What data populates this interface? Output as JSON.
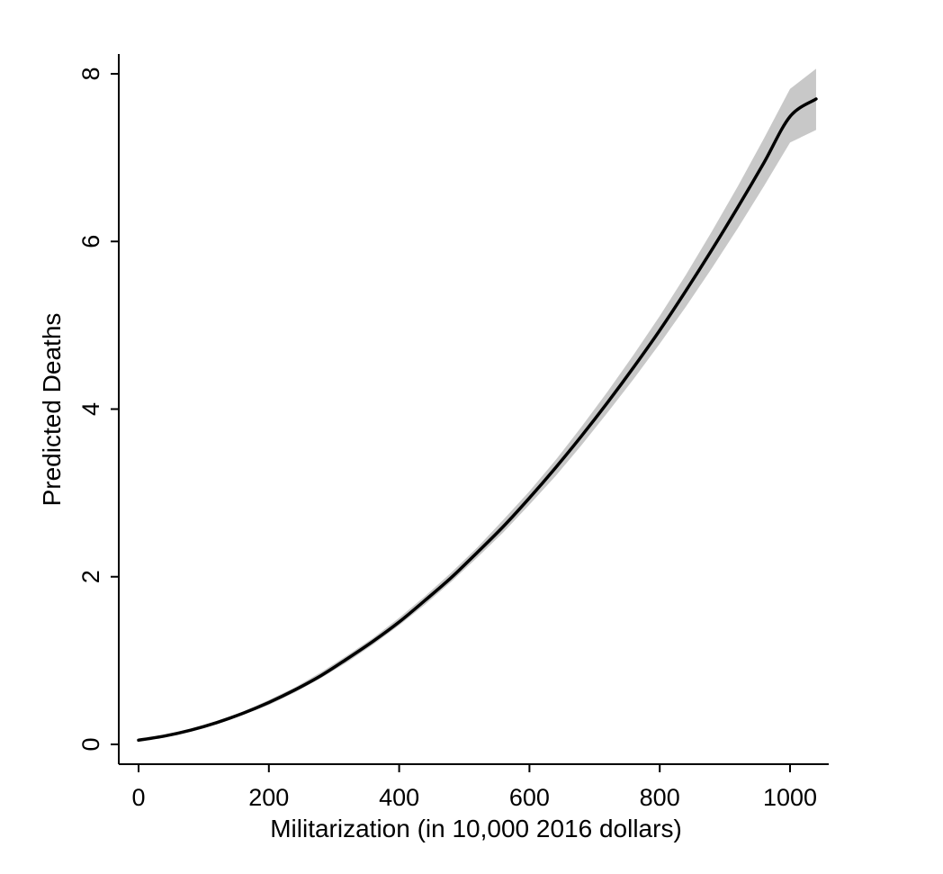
{
  "chart_data": {
    "type": "line",
    "title": "",
    "xlabel": "Militarization (in 10,000 2016 dollars)",
    "ylabel": "Predicted Deaths",
    "xlim": [
      0,
      1040
    ],
    "ylim": [
      0,
      8
    ],
    "x_ticks": [
      0,
      200,
      400,
      600,
      800,
      1000
    ],
    "y_ticks": [
      0,
      2,
      4,
      6,
      8
    ],
    "x_tick_labels": [
      "0",
      "200",
      "400",
      "600",
      "800",
      "1000"
    ],
    "y_tick_labels": [
      "0",
      "2",
      "4",
      "6",
      "8"
    ],
    "grid": false,
    "legend": "none",
    "colors": {
      "line": "#000000",
      "band": "#c8c8c8",
      "axis": "#000000"
    },
    "series": [
      {
        "values_x": [
          0,
          40,
          80,
          120,
          160,
          200,
          240,
          280,
          320,
          360,
          400,
          440,
          480,
          520,
          560,
          600,
          640,
          680,
          720,
          760,
          800,
          840,
          880,
          920,
          960,
          1000,
          1040
        ],
        "values_y": [
          0.05,
          0.1,
          0.17,
          0.26,
          0.37,
          0.5,
          0.65,
          0.82,
          1.02,
          1.23,
          1.46,
          1.72,
          1.99,
          2.29,
          2.6,
          2.94,
          3.3,
          3.68,
          4.08,
          4.5,
          4.94,
          5.41,
          5.9,
          6.41,
          6.94,
          7.49,
          7.7
        ],
        "ci_lower": [
          0.04,
          0.09,
          0.16,
          0.24,
          0.35,
          0.47,
          0.62,
          0.79,
          0.98,
          1.19,
          1.42,
          1.67,
          1.94,
          2.23,
          2.53,
          2.86,
          3.2,
          3.57,
          3.96,
          4.36,
          4.78,
          5.22,
          5.68,
          6.16,
          6.66,
          7.18,
          7.33
        ],
        "ci_upper": [
          0.06,
          0.11,
          0.18,
          0.28,
          0.39,
          0.53,
          0.68,
          0.86,
          1.06,
          1.27,
          1.51,
          1.77,
          2.05,
          2.35,
          2.68,
          3.02,
          3.39,
          3.79,
          4.21,
          4.65,
          5.11,
          5.6,
          6.12,
          6.66,
          7.23,
          7.82,
          8.06
        ]
      }
    ]
  }
}
